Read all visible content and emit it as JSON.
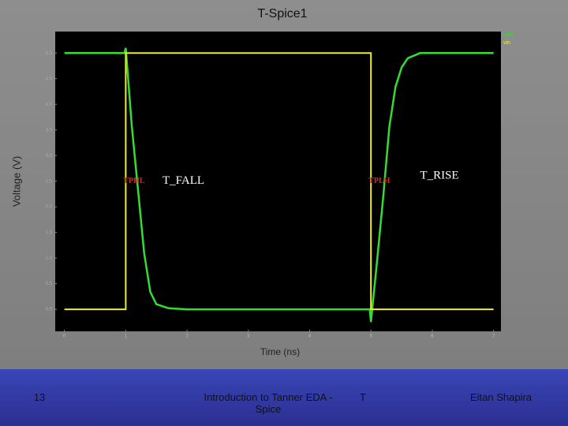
{
  "chart_data": {
    "type": "line",
    "title": "T-Spice1",
    "x_label": "Time (ns)",
    "y_label": "Voltage (V)",
    "xlim": [
      -0.15,
      7.12
    ],
    "ylim": [
      -0.43,
      5.42
    ],
    "xticks": [
      0,
      1,
      2,
      3,
      4,
      5,
      6,
      7
    ],
    "yticks": [
      {
        "value": 0,
        "label": "0.0"
      },
      {
        "value": 0.5,
        "label": "0.5"
      },
      {
        "value": 1,
        "label": "1.0"
      },
      {
        "value": 1.5,
        "label": "1.5"
      },
      {
        "value": 2,
        "label": "2.0"
      },
      {
        "value": 2.5,
        "label": "2.5"
      },
      {
        "value": 3,
        "label": "3.0"
      },
      {
        "value": 3.5,
        "label": "3.5"
      },
      {
        "value": 4,
        "label": "4.0"
      },
      {
        "value": 4.5,
        "label": "4.5"
      },
      {
        "value": 5,
        "label": "5.0"
      }
    ],
    "series": [
      {
        "name": "vout",
        "color": "#33dd33",
        "x": [
          0,
          0.98,
          1.0,
          1.1,
          1.2,
          1.3,
          1.4,
          1.5,
          1.7,
          2.0,
          4.98,
          5.0,
          5.1,
          5.2,
          5.3,
          5.4,
          5.5,
          5.6,
          5.8,
          7.0
        ],
        "values": [
          5.0,
          5.0,
          5.1,
          3.57,
          2.34,
          1.1,
          0.34,
          0.1,
          0.02,
          0,
          0,
          -0.25,
          0.95,
          2.2,
          3.57,
          4.34,
          4.72,
          4.9,
          5.0,
          5.0
        ]
      },
      {
        "name": "vin",
        "color": "#eeee22",
        "x": [
          0,
          1.0,
          1.0,
          5.0,
          5.0,
          7.0
        ],
        "values": [
          0,
          0,
          5,
          5,
          0,
          0
        ]
      }
    ],
    "annotations": [
      {
        "text": "TPHL",
        "x": 1.0,
        "y": 2.5,
        "color": "#dd2222"
      },
      {
        "text": "T_FALL",
        "x": 1.6,
        "y": 2.5,
        "color": "#ffffff"
      },
      {
        "text": "TPLH",
        "x": 5.0,
        "y": 2.5,
        "color": "#dd2222"
      },
      {
        "text": "T_RISE",
        "x": 5.8,
        "y": 2.6,
        "color": "#ffffff"
      }
    ]
  },
  "footer": {
    "page": "13",
    "course": "Introduction to Tanner EDA -Spice",
    "mark": "T",
    "author": "Eitan Shapira"
  }
}
